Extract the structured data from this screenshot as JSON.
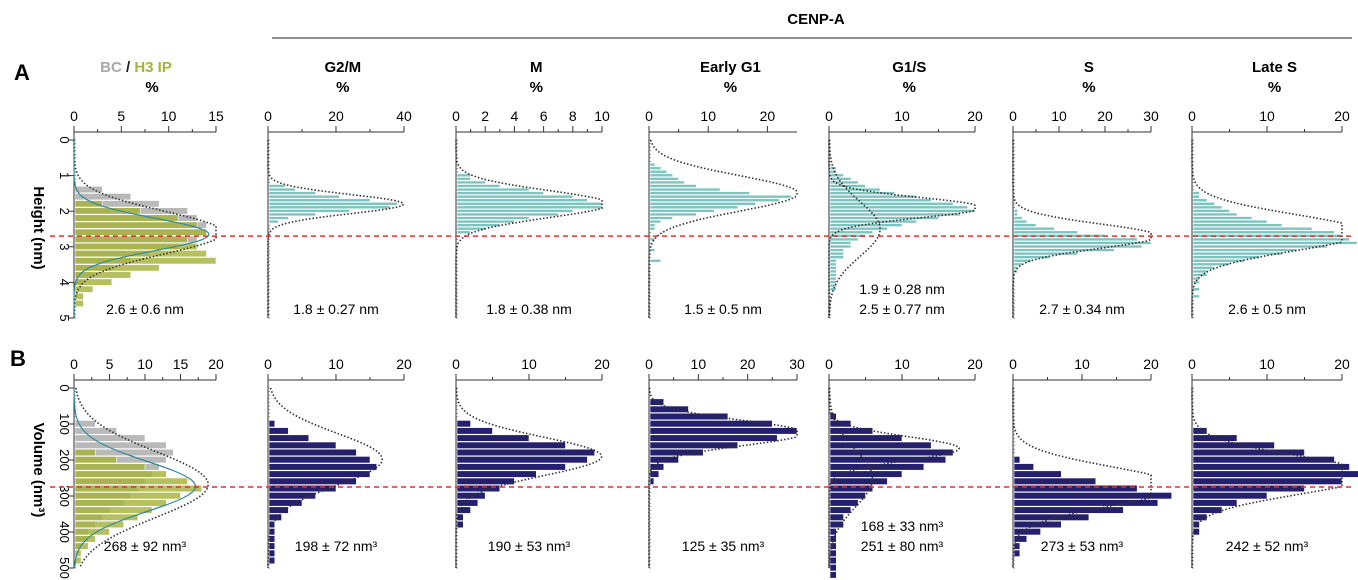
{
  "figure": {
    "panel_a_label": "A",
    "panel_b_label": "B",
    "group_title": "CENP-A",
    "first_title_bc": "BC",
    "first_title_sep": " / ",
    "first_title_h3": "H3 IP",
    "unit_percent": "%",
    "row_a_ylabel": "Height (nm)",
    "row_b_ylabel": "Volume (nm³)"
  },
  "colors": {
    "bc_gray": "#a8a8a8",
    "h3_olive": "#a6b23c",
    "cenpa_teal": "#7cc4c0",
    "volume_navy": "#24206e",
    "mean_line_red": "#e0302a",
    "fit_dotted": "#333333",
    "bc_fit_teal": "#2e8c9a"
  },
  "chart_data": [
    {
      "type": "bar",
      "title": "BC / H3 IP",
      "xlabel": "%",
      "ylabel": "Height (nm)",
      "xlim": [
        0,
        15
      ],
      "xticks": [
        0,
        5,
        10,
        15
      ],
      "ylim": [
        0,
        5
      ],
      "yticks": [
        0,
        1,
        2,
        3,
        4,
        5
      ],
      "orientation": "horizontal",
      "bin_width": 0.2,
      "series": [
        {
          "name": "BC",
          "bins": [
            1.4,
            1.6,
            1.8,
            2.0,
            2.2,
            2.4,
            2.6,
            2.8,
            3.0,
            3.2,
            3.4,
            3.6,
            3.8,
            4.0
          ],
          "values": [
            3,
            6,
            9,
            12,
            13,
            14,
            14,
            13,
            11,
            8,
            6,
            4,
            2,
            1
          ]
        },
        {
          "name": "H3 IP",
          "bins": [
            1.8,
            2.0,
            2.2,
            2.4,
            2.6,
            2.8,
            3.0,
            3.2,
            3.4,
            3.6,
            3.8,
            4.0,
            4.2,
            4.4,
            4.6
          ],
          "values": [
            3,
            7,
            11,
            13,
            14,
            12,
            13,
            14,
            15,
            9,
            6,
            4,
            2,
            1,
            1
          ]
        }
      ],
      "annotation": "2.6 ± 0.6 nm"
    },
    {
      "type": "bar",
      "title": "G2/M",
      "xlabel": "%",
      "xlim": [
        0,
        40
      ],
      "xticks": [
        0,
        20,
        40
      ],
      "ylim": [
        0,
        5
      ],
      "orientation": "horizontal",
      "bin_width": 0.1,
      "series": [
        {
          "name": "CENP-A",
          "bins": [
            1.3,
            1.4,
            1.5,
            1.6,
            1.7,
            1.8,
            1.9,
            2.0,
            2.1,
            2.2,
            2.3
          ],
          "values": [
            5,
            8,
            14,
            21,
            30,
            38,
            36,
            24,
            14,
            6,
            3
          ]
        }
      ],
      "annotation": "1.8 ± 0.27 nm"
    },
    {
      "type": "bar",
      "title": "M",
      "xlabel": "%",
      "xlim": [
        0,
        10
      ],
      "xticks": [
        0,
        2,
        4,
        6,
        8,
        10
      ],
      "ylim": [
        0,
        5
      ],
      "orientation": "horizontal",
      "bin_width": 0.1,
      "series": [
        {
          "name": "CENP-A",
          "bins": [
            1.0,
            1.1,
            1.2,
            1.3,
            1.4,
            1.5,
            1.6,
            1.7,
            1.8,
            1.9,
            2.0,
            2.1,
            2.2,
            2.3,
            2.4,
            2.5,
            2.6
          ],
          "values": [
            1,
            1,
            2,
            3,
            5,
            6,
            8,
            9,
            10,
            10,
            8,
            7,
            5,
            4,
            3,
            2,
            1
          ]
        }
      ],
      "annotation": "1.8 ± 0.38 nm"
    },
    {
      "type": "bar",
      "title": "Early G1",
      "xlabel": "%",
      "xlim": [
        0,
        25
      ],
      "xticks": [
        0,
        10,
        20
      ],
      "ylim": [
        0,
        5
      ],
      "orientation": "horizontal",
      "bin_width": 0.1,
      "series": [
        {
          "name": "CENP-A",
          "bins": [
            0.7,
            0.8,
            0.9,
            1.0,
            1.1,
            1.2,
            1.3,
            1.4,
            1.5,
            1.6,
            1.7,
            1.8,
            1.9,
            2.0,
            2.1,
            2.2,
            2.3,
            2.4,
            2.5,
            2.8,
            3.1,
            3.4
          ],
          "values": [
            1,
            2,
            3,
            4,
            5,
            6,
            8,
            12,
            17,
            24,
            22,
            18,
            15,
            11,
            8,
            4,
            2,
            1,
            1,
            1,
            1,
            2
          ]
        }
      ],
      "annotation": "1.5 ± 0.5 nm"
    },
    {
      "type": "bar",
      "title": "G1/S",
      "xlabel": "%",
      "xlim": [
        0,
        20
      ],
      "xticks": [
        0,
        10,
        20
      ],
      "ylim": [
        0,
        5
      ],
      "orientation": "horizontal",
      "bin_width": 0.1,
      "series": [
        {
          "name": "CENP-A",
          "bins": [
            0.8,
            0.9,
            1.0,
            1.1,
            1.2,
            1.3,
            1.4,
            1.5,
            1.6,
            1.7,
            1.8,
            1.9,
            2.0,
            2.1,
            2.2,
            2.3,
            2.4,
            2.5,
            2.6,
            2.7,
            2.8,
            2.9,
            3.0,
            3.1,
            3.2,
            3.3,
            3.4,
            3.5,
            3.6,
            3.7,
            3.8,
            3.9,
            4.0,
            4.1,
            4.2
          ],
          "values": [
            1,
            1,
            2,
            3,
            4,
            5,
            7,
            9,
            12,
            14,
            17,
            19,
            20,
            18,
            15,
            12,
            10,
            8,
            6,
            5,
            4,
            3,
            3,
            2,
            2,
            2,
            1,
            1,
            1,
            1,
            1,
            1,
            1,
            1,
            1
          ]
        }
      ],
      "annotation": "1.9 ± 0.28 nm",
      "annotation2": "2.5 ± 0.77 nm"
    },
    {
      "type": "bar",
      "title": "S",
      "xlabel": "%",
      "xlim": [
        0,
        30
      ],
      "xticks": [
        0,
        10,
        20,
        30
      ],
      "ylim": [
        0,
        5
      ],
      "orientation": "horizontal",
      "bin_width": 0.1,
      "series": [
        {
          "name": "CENP-A",
          "bins": [
            2.0,
            2.1,
            2.2,
            2.3,
            2.4,
            2.5,
            2.6,
            2.7,
            2.8,
            2.9,
            3.0,
            3.1,
            3.2,
            3.3,
            3.4,
            3.5,
            3.6,
            3.7
          ],
          "values": [
            1,
            1,
            2,
            3,
            5,
            9,
            14,
            20,
            27,
            30,
            28,
            22,
            14,
            8,
            4,
            2,
            1,
            1
          ]
        }
      ],
      "annotation": "2.7 ± 0.34 nm"
    },
    {
      "type": "bar",
      "title": "Late S",
      "xlabel": "%",
      "xlim": [
        0,
        20
      ],
      "xticks": [
        0,
        10,
        20
      ],
      "ylim": [
        0,
        5
      ],
      "orientation": "horizontal",
      "bin_width": 0.1,
      "series": [
        {
          "name": "CENP-A",
          "bins": [
            1.5,
            1.6,
            1.7,
            1.8,
            1.9,
            2.0,
            2.1,
            2.2,
            2.3,
            2.4,
            2.5,
            2.6,
            2.7,
            2.8,
            2.9,
            3.0,
            3.1,
            3.2,
            3.3,
            3.4,
            3.5,
            3.6,
            3.7,
            3.8,
            3.9,
            4.0,
            4.2,
            4.4
          ],
          "values": [
            1,
            1,
            2,
            3,
            4,
            5,
            6,
            8,
            10,
            12,
            16,
            19,
            20,
            21,
            22,
            18,
            14,
            12,
            9,
            7,
            5,
            3,
            2,
            2,
            1,
            1,
            1,
            1
          ]
        }
      ],
      "annotation": "2.6 ± 0.5 nm"
    },
    {
      "type": "bar",
      "title": "",
      "xlabel": "",
      "ylabel": "Volume (nm³)",
      "xlim": [
        0,
        20
      ],
      "xticks": [
        0,
        5,
        10,
        15,
        20
      ],
      "ylim": [
        0,
        500
      ],
      "yticks": [
        0,
        100,
        200,
        300,
        400,
        500
      ],
      "orientation": "horizontal",
      "bin_width": 20,
      "series": [
        {
          "name": "BC",
          "bins": [
            100,
            120,
            140,
            160,
            180,
            200,
            220,
            240,
            260,
            280,
            300,
            320,
            340,
            360,
            380,
            400,
            420,
            440
          ],
          "values": [
            3,
            6,
            10,
            13,
            14,
            13,
            12,
            11,
            10,
            9,
            8,
            7,
            5,
            4,
            3,
            2,
            2,
            1
          ]
        },
        {
          "name": "H3 IP",
          "bins": [
            180,
            200,
            220,
            240,
            260,
            280,
            300,
            320,
            340,
            360,
            380,
            400,
            420,
            440,
            460,
            480
          ],
          "values": [
            3,
            6,
            10,
            13,
            16,
            18,
            15,
            13,
            11,
            9,
            7,
            5,
            3,
            2,
            1,
            1
          ]
        }
      ],
      "annotation": "268 ± 92 nm³"
    },
    {
      "type": "bar",
      "title": "",
      "xlabel": "",
      "xlim": [
        0,
        20
      ],
      "xticks": [
        0,
        10,
        20
      ],
      "ylim": [
        0,
        500
      ],
      "orientation": "horizontal",
      "bin_width": 20,
      "series": [
        {
          "name": "CENP-A",
          "bins": [
            100,
            120,
            140,
            160,
            180,
            200,
            220,
            240,
            260,
            280,
            300,
            320,
            340,
            360,
            380,
            400,
            420,
            440,
            460,
            480
          ],
          "values": [
            1,
            3,
            6,
            10,
            13,
            15,
            16,
            15,
            13,
            10,
            7,
            5,
            3,
            2,
            1,
            1,
            1,
            1,
            1,
            1
          ]
        }
      ],
      "annotation": "198 ± 72 nm³"
    },
    {
      "type": "bar",
      "title": "",
      "xlabel": "",
      "xlim": [
        0,
        20
      ],
      "xticks": [
        0,
        10,
        20
      ],
      "ylim": [
        0,
        500
      ],
      "orientation": "horizontal",
      "bin_width": 20,
      "series": [
        {
          "name": "CENP-A",
          "bins": [
            100,
            120,
            140,
            160,
            180,
            200,
            220,
            240,
            260,
            280,
            300,
            320,
            340,
            360,
            380
          ],
          "values": [
            2,
            5,
            10,
            15,
            19,
            18,
            15,
            11,
            8,
            6,
            4,
            3,
            2,
            1,
            1
          ]
        }
      ],
      "annotation": "190 ± 53 nm³"
    },
    {
      "type": "bar",
      "title": "",
      "xlabel": "",
      "xlim": [
        0,
        30
      ],
      "xticks": [
        0,
        10,
        20,
        30
      ],
      "ylim": [
        0,
        500
      ],
      "orientation": "horizontal",
      "bin_width": 20,
      "series": [
        {
          "name": "CENP-A",
          "bins": [
            40,
            60,
            80,
            100,
            120,
            140,
            160,
            180,
            200,
            220,
            240,
            260
          ],
          "values": [
            3,
            8,
            16,
            25,
            30,
            26,
            18,
            11,
            6,
            3,
            2,
            1
          ]
        }
      ],
      "annotation": "125 ± 35 nm³"
    },
    {
      "type": "bar",
      "title": "",
      "xlabel": "",
      "xlim": [
        0,
        20
      ],
      "xticks": [
        0,
        10,
        20
      ],
      "ylim": [
        0,
        500
      ],
      "orientation": "horizontal",
      "bin_width": 20,
      "series": [
        {
          "name": "CENP-A",
          "bins": [
            80,
            100,
            120,
            140,
            160,
            180,
            200,
            220,
            240,
            260,
            280,
            300,
            320,
            340,
            360,
            380,
            400,
            420,
            440,
            460,
            480,
            500,
            520
          ],
          "values": [
            1,
            3,
            6,
            10,
            14,
            17,
            16,
            13,
            10,
            8,
            6,
            5,
            4,
            3,
            2,
            2,
            1,
            1,
            1,
            1,
            1,
            1,
            1
          ]
        }
      ],
      "annotation": "168 ± 33 nm³",
      "annotation2": "251 ± 80 nm³"
    },
    {
      "type": "bar",
      "title": "",
      "xlabel": "",
      "xlim": [
        0,
        20
      ],
      "xticks": [
        0,
        10,
        20
      ],
      "ylim": [
        0,
        500
      ],
      "orientation": "horizontal",
      "bin_width": 20,
      "series": [
        {
          "name": "CENP-A",
          "bins": [
            200,
            220,
            240,
            260,
            280,
            300,
            320,
            340,
            360,
            380,
            400,
            420,
            440,
            460
          ],
          "values": [
            1,
            3,
            7,
            12,
            18,
            23,
            21,
            16,
            11,
            7,
            4,
            2,
            1,
            1
          ]
        }
      ],
      "annotation": "273 ± 53 nm³"
    },
    {
      "type": "bar",
      "title": "",
      "xlabel": "",
      "xlim": [
        0,
        20
      ],
      "xticks": [
        0,
        10,
        20
      ],
      "ylim": [
        0,
        500
      ],
      "orientation": "horizontal",
      "bin_width": 20,
      "series": [
        {
          "name": "CENP-A",
          "bins": [
            120,
            140,
            160,
            180,
            200,
            220,
            240,
            260,
            280,
            300,
            320,
            340,
            360,
            380,
            400
          ],
          "values": [
            2,
            6,
            11,
            15,
            19,
            21,
            23,
            20,
            15,
            10,
            6,
            4,
            2,
            1,
            1
          ]
        }
      ],
      "annotation": "242 ± 52 nm³"
    }
  ]
}
